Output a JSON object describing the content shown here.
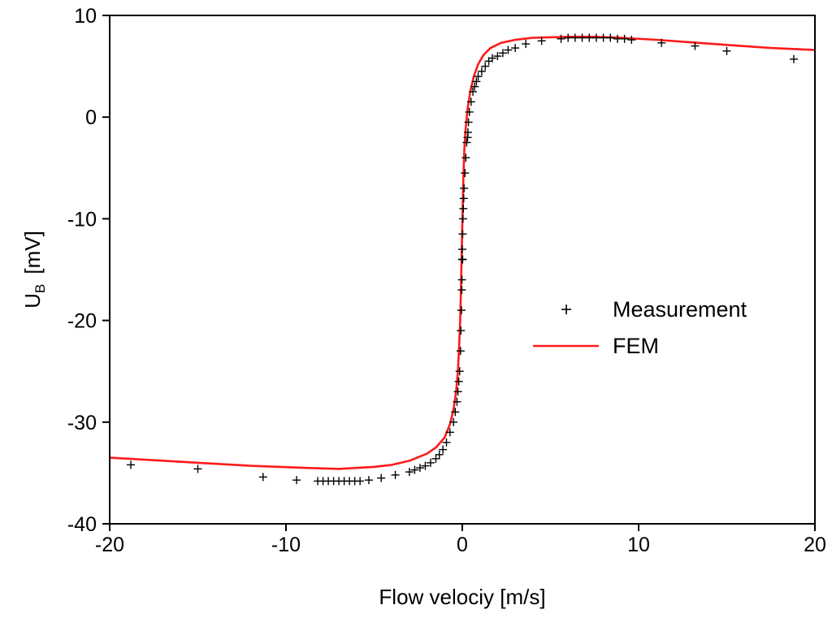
{
  "chart_data": {
    "type": "scatter",
    "title": "",
    "xlabel": "Flow velociy [m/s]",
    "ylabel": {
      "main": "U",
      "sub": "B",
      "unit": "[mV]"
    },
    "xlim": [
      -20,
      20
    ],
    "ylim": [
      -40,
      10
    ],
    "xticks": [
      -20,
      -10,
      0,
      10,
      20
    ],
    "yticks": [
      -40,
      -30,
      -20,
      -10,
      0,
      10
    ],
    "grid": false,
    "legend": {
      "position": "right-center"
    },
    "series": [
      {
        "name": "Measurement",
        "kind": "scatter",
        "marker": "+",
        "color": "#000000",
        "points": [
          [
            -18.8,
            -34.2
          ],
          [
            -15.0,
            -34.6
          ],
          [
            -11.3,
            -35.4
          ],
          [
            -9.4,
            -35.7
          ],
          [
            -8.2,
            -35.8
          ],
          [
            -7.9,
            -35.8
          ],
          [
            -7.6,
            -35.8
          ],
          [
            -7.3,
            -35.8
          ],
          [
            -7.0,
            -35.8
          ],
          [
            -6.7,
            -35.8
          ],
          [
            -6.4,
            -35.8
          ],
          [
            -6.1,
            -35.8
          ],
          [
            -5.8,
            -35.8
          ],
          [
            -5.3,
            -35.7
          ],
          [
            -4.6,
            -35.5
          ],
          [
            -3.8,
            -35.2
          ],
          [
            -3.0,
            -34.9
          ],
          [
            -2.7,
            -34.7
          ],
          [
            -2.4,
            -34.5
          ],
          [
            -2.1,
            -34.3
          ],
          [
            -1.8,
            -34.0
          ],
          [
            -1.5,
            -33.6
          ],
          [
            -1.3,
            -33.2
          ],
          [
            -1.1,
            -32.7
          ],
          [
            -0.9,
            -32.0
          ],
          [
            -0.7,
            -31.0
          ],
          [
            -0.5,
            -30.0
          ],
          [
            -0.4,
            -29.0
          ],
          [
            -0.3,
            -28.0
          ],
          [
            -0.25,
            -27.0
          ],
          [
            -0.2,
            -26.0
          ],
          [
            -0.15,
            -25.0
          ],
          [
            -0.1,
            -23.0
          ],
          [
            -0.08,
            -21.0
          ],
          [
            -0.05,
            -19.0
          ],
          [
            -0.03,
            -17.0
          ],
          [
            -0.02,
            -16.0
          ],
          [
            -0.01,
            -14.0
          ],
          [
            0.0,
            -14.0
          ],
          [
            0.02,
            -14.0
          ],
          [
            0.0,
            -13.0
          ],
          [
            0.02,
            -11.5
          ],
          [
            0.04,
            -10.0
          ],
          [
            0.06,
            -9.0
          ],
          [
            0.08,
            -8.0
          ],
          [
            0.1,
            -7.0
          ],
          [
            0.15,
            -5.5
          ],
          [
            0.2,
            -4.0
          ],
          [
            0.25,
            -2.5
          ],
          [
            0.3,
            -2.0
          ],
          [
            0.32,
            -1.5
          ],
          [
            0.35,
            -0.5
          ],
          [
            0.4,
            0.5
          ],
          [
            0.5,
            1.5
          ],
          [
            0.6,
            2.5
          ],
          [
            0.7,
            3.0
          ],
          [
            0.8,
            3.5
          ],
          [
            0.9,
            4.0
          ],
          [
            1.1,
            4.5
          ],
          [
            1.3,
            5.0
          ],
          [
            1.5,
            5.5
          ],
          [
            1.7,
            5.8
          ],
          [
            2.0,
            6.0
          ],
          [
            2.3,
            6.3
          ],
          [
            2.6,
            6.6
          ],
          [
            3.0,
            6.8
          ],
          [
            3.6,
            7.2
          ],
          [
            4.5,
            7.5
          ],
          [
            5.6,
            7.7
          ],
          [
            6.0,
            7.8
          ],
          [
            6.4,
            7.8
          ],
          [
            6.8,
            7.8
          ],
          [
            7.2,
            7.8
          ],
          [
            7.6,
            7.8
          ],
          [
            8.0,
            7.8
          ],
          [
            8.4,
            7.8
          ],
          [
            8.8,
            7.7
          ],
          [
            9.2,
            7.7
          ],
          [
            9.6,
            7.6
          ],
          [
            11.3,
            7.3
          ],
          [
            13.2,
            7.0
          ],
          [
            15.0,
            6.5
          ],
          [
            18.8,
            5.7
          ]
        ]
      },
      {
        "name": "FEM",
        "kind": "line",
        "color": "#ff1a1a",
        "points": [
          [
            -20,
            -33.5
          ],
          [
            -16,
            -33.9
          ],
          [
            -12,
            -34.3
          ],
          [
            -9,
            -34.5
          ],
          [
            -7,
            -34.6
          ],
          [
            -5,
            -34.4
          ],
          [
            -4,
            -34.2
          ],
          [
            -3,
            -33.8
          ],
          [
            -2,
            -33.1
          ],
          [
            -1.5,
            -32.5
          ],
          [
            -1.0,
            -31.5
          ],
          [
            -0.7,
            -30.2
          ],
          [
            -0.5,
            -28.8
          ],
          [
            -0.35,
            -27.0
          ],
          [
            -0.25,
            -25.0
          ],
          [
            -0.18,
            -22.5
          ],
          [
            -0.12,
            -20.0
          ],
          [
            -0.08,
            -17.0
          ],
          [
            -0.04,
            -14.0
          ],
          [
            0.0,
            -10.5
          ],
          [
            0.03,
            -8.0
          ],
          [
            0.07,
            -5.5
          ],
          [
            0.12,
            -3.0
          ],
          [
            0.2,
            -1.0
          ],
          [
            0.3,
            0.8
          ],
          [
            0.45,
            2.5
          ],
          [
            0.65,
            4.0
          ],
          [
            0.9,
            5.2
          ],
          [
            1.2,
            6.1
          ],
          [
            1.6,
            6.8
          ],
          [
            2.2,
            7.3
          ],
          [
            3.0,
            7.6
          ],
          [
            4.0,
            7.8
          ],
          [
            5.0,
            7.85
          ],
          [
            6.0,
            7.9
          ],
          [
            7.5,
            7.9
          ],
          [
            9.0,
            7.8
          ],
          [
            11.0,
            7.6
          ],
          [
            13.0,
            7.35
          ],
          [
            15.0,
            7.1
          ],
          [
            17.5,
            6.8
          ],
          [
            20.0,
            6.6
          ]
        ]
      }
    ]
  }
}
